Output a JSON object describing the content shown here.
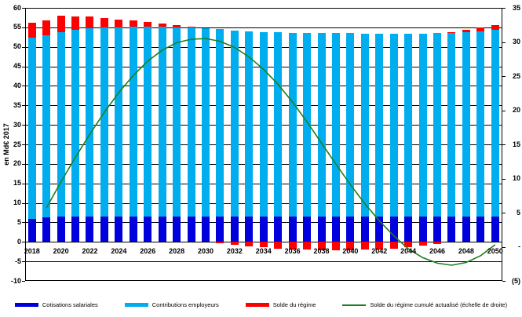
{
  "chart_data": {
    "type": "bar",
    "subtype": "stacked-bars-with-line-overlay",
    "title": "",
    "categories": [
      2018,
      2019,
      2020,
      2021,
      2022,
      2023,
      2024,
      2025,
      2026,
      2027,
      2028,
      2029,
      2030,
      2031,
      2032,
      2033,
      2034,
      2035,
      2036,
      2037,
      2038,
      2039,
      2040,
      2041,
      2042,
      2043,
      2044,
      2045,
      2046,
      2047,
      2048,
      2049,
      2050
    ],
    "series": [
      {
        "name": "Cotisations salariales",
        "type": "bar",
        "axis": "left",
        "color": "#0000DC",
        "values": [
          5.9,
          6.2,
          6.4,
          6.4,
          6.4,
          6.4,
          6.4,
          6.4,
          6.4,
          6.4,
          6.4,
          6.4,
          6.4,
          6.4,
          6.4,
          6.4,
          6.4,
          6.4,
          6.4,
          6.4,
          6.4,
          6.4,
          6.4,
          6.4,
          6.4,
          6.4,
          6.4,
          6.4,
          6.4,
          6.4,
          6.4,
          6.4,
          6.4
        ]
      },
      {
        "name": "Contributions employeurs",
        "type": "bar",
        "axis": "left",
        "color": "#00AEEF",
        "values": [
          46.4,
          46.8,
          47.4,
          48.0,
          48.3,
          48.5,
          48.6,
          48.7,
          48.7,
          48.7,
          48.6,
          48.5,
          48.3,
          48.1,
          47.8,
          47.5,
          47.4,
          47.3,
          47.2,
          47.2,
          47.2,
          47.1,
          47.1,
          47.0,
          47.0,
          47.0,
          47.0,
          47.0,
          47.1,
          47.2,
          47.4,
          47.6,
          47.9
        ]
      },
      {
        "name": "Solde du régime",
        "type": "bar",
        "axis": "left",
        "color": "#FF0000",
        "values": [
          3.9,
          3.8,
          4.1,
          3.4,
          3.0,
          2.5,
          2.0,
          1.6,
          1.2,
          0.8,
          0.5,
          0.3,
          0.0,
          -0.3,
          -0.7,
          -1.1,
          -1.4,
          -1.7,
          -1.9,
          -2.0,
          -2.1,
          -2.1,
          -2.1,
          -2.0,
          -1.9,
          -1.7,
          -1.4,
          -1.0,
          -0.6,
          0.2,
          0.6,
          1.0,
          1.3
        ]
      },
      {
        "name": "Solde du régime cumulé actualisé (échelle de droite)",
        "type": "line",
        "axis": "right",
        "color": "#1E7D1E",
        "values": [
          null,
          5.7,
          9.5,
          13.1,
          16.5,
          19.7,
          22.6,
          25.1,
          27.2,
          28.8,
          29.9,
          30.4,
          30.5,
          30.1,
          29.2,
          27.8,
          26.0,
          23.8,
          21.2,
          18.3,
          15.2,
          12.1,
          9.1,
          6.3,
          3.8,
          1.6,
          -0.3,
          -1.6,
          -2.4,
          -2.7,
          -2.3,
          -1.3,
          0.3
        ]
      }
    ],
    "left_axis": {
      "title": "en Md€ 2017",
      "min": -10,
      "max": 60,
      "step": 5,
      "tick_labels": [
        "60",
        "55",
        "50",
        "45",
        "40",
        "35",
        "30",
        "25",
        "20",
        "15",
        "10",
        "5",
        "0",
        "-5",
        "-10"
      ]
    },
    "right_axis": {
      "min": -5,
      "max": 35,
      "step": 5,
      "tick_labels": [
        "35",
        "30",
        "25",
        "20",
        "15",
        "10",
        "5",
        "-",
        "(5)"
      ]
    },
    "x_tick_labels": [
      "2018",
      "2020",
      "2022",
      "2024",
      "2026",
      "2028",
      "2030",
      "2032",
      "2034",
      "2036",
      "2038",
      "2040",
      "2042",
      "2044",
      "2046",
      "2048",
      "2050"
    ],
    "grid": "horizontal-black",
    "legend_position": "bottom",
    "background": "#FFFFFF"
  }
}
